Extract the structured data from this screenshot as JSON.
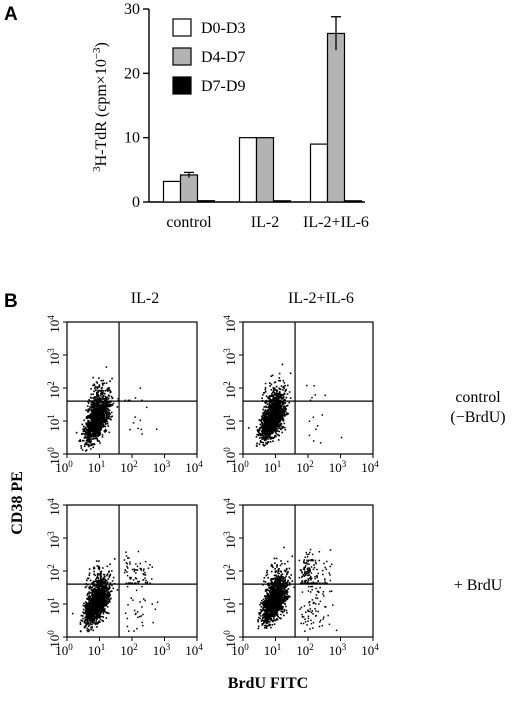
{
  "panel_a_label": "A",
  "panel_b_label": "B",
  "chart_data": [
    {
      "type": "bar",
      "panel": "A",
      "categories": [
        "control",
        "IL-2",
        "IL-2+IL-6"
      ],
      "series": [
        {
          "name": "D0-D3",
          "values": [
            3.2,
            10,
            9
          ],
          "errors": [
            0,
            0,
            0
          ],
          "color": "#ffffff"
        },
        {
          "name": "D4-D7",
          "values": [
            4.2,
            10,
            26.2
          ],
          "errors": [
            0.4,
            0,
            2.6
          ],
          "color": "#b3b3b3"
        },
        {
          "name": "D7-D9",
          "values": [
            0.2,
            0.1,
            0.15
          ],
          "errors": [
            0,
            0,
            0
          ],
          "color": "#000000"
        }
      ],
      "ylabel_pre": "3",
      "ylabel_main": "H-TdR (cpm×10",
      "ylabel_exp": "−3",
      "ylabel_post": ")",
      "ylim": [
        0,
        30
      ],
      "yticks": [
        "0",
        "10",
        "20",
        "30"
      ],
      "legend_position": "top-left"
    },
    {
      "type": "scatter",
      "panel": "B",
      "subtype": "flow-cytometry dot plots (2x2 grid)",
      "column_titles": [
        "IL-2",
        "IL-2+IL-6"
      ],
      "row_labels": [
        [
          "control",
          "(−BrdU)"
        ],
        [
          "+ BrdU"
        ]
      ],
      "xlabel": "BrdU FITC",
      "ylabel": "CD38 PE",
      "xscale": "log",
      "yscale": "log",
      "xlim": [
        1,
        10000
      ],
      "ylim": [
        1,
        10000
      ],
      "tick_base": "10",
      "tick_exponents": [
        "0",
        "1",
        "2",
        "3",
        "4"
      ],
      "gate_x": 40,
      "gate_y": 40,
      "plots": [
        {
          "row": 0,
          "col": 0,
          "main_cluster": {
            "x": 8,
            "y": 10
          },
          "upper_right_fraction": 0.004,
          "lower_right_fraction": 0.006
        },
        {
          "row": 0,
          "col": 1,
          "main_cluster": {
            "x": 8,
            "y": 12
          },
          "upper_right_fraction": 0.004,
          "lower_right_fraction": 0.006
        },
        {
          "row": 1,
          "col": 0,
          "main_cluster": {
            "x": 8,
            "y": 10
          },
          "upper_right_fraction": 0.05,
          "lower_right_fraction": 0.02
        },
        {
          "row": 1,
          "col": 1,
          "main_cluster": {
            "x": 9,
            "y": 12
          },
          "upper_right_fraction": 0.12,
          "lower_right_fraction": 0.05
        }
      ]
    }
  ]
}
